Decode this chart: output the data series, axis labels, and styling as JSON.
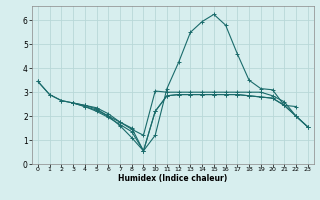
{
  "background_color": "#d7eeee",
  "grid_color": "#b8d8d8",
  "line_color": "#1a6b6b",
  "xlim": [
    -0.5,
    23.5
  ],
  "ylim": [
    0,
    6.6
  ],
  "xticks": [
    0,
    1,
    2,
    3,
    4,
    5,
    6,
    7,
    8,
    9,
    10,
    11,
    12,
    13,
    14,
    15,
    16,
    17,
    18,
    19,
    20,
    21,
    22,
    23
  ],
  "yticks": [
    0,
    1,
    2,
    3,
    4,
    5,
    6
  ],
  "xlabel": "Humidex (Indice chaleur)",
  "series": [
    {
      "x": [
        0,
        1,
        2,
        3,
        4,
        5,
        6,
        7,
        8,
        9,
        10,
        11,
        12,
        13,
        14,
        15,
        16,
        17,
        18,
        19,
        20,
        21,
        22,
        23
      ],
      "y": [
        3.45,
        2.9,
        2.65,
        2.55,
        2.45,
        2.35,
        2.1,
        1.75,
        1.45,
        1.2,
        3.05,
        3.0,
        3.0,
        3.0,
        3.0,
        3.0,
        3.0,
        3.0,
        3.0,
        3.0,
        2.85,
        2.6,
        2.0,
        1.55
      ]
    },
    {
      "x": [
        0,
        1,
        2,
        3,
        4,
        5,
        6,
        7,
        8,
        9,
        10,
        11,
        12,
        13,
        14,
        15,
        16,
        17,
        18,
        19,
        20,
        21,
        22
      ],
      "y": [
        3.45,
        2.9,
        2.65,
        2.55,
        2.45,
        2.3,
        2.0,
        1.6,
        1.1,
        0.55,
        1.2,
        3.15,
        4.25,
        5.5,
        5.95,
        6.25,
        5.8,
        4.6,
        3.5,
        3.15,
        3.1,
        2.45,
        2.4
      ]
    },
    {
      "x": [
        3,
        4,
        5,
        6,
        7,
        8,
        9,
        10,
        11,
        12,
        13,
        14,
        15,
        16,
        17,
        18,
        19,
        20,
        21,
        22,
        23
      ],
      "y": [
        2.55,
        2.4,
        2.25,
        2.0,
        1.75,
        1.5,
        0.55,
        2.2,
        2.85,
        2.9,
        2.9,
        2.9,
        2.9,
        2.9,
        2.9,
        2.85,
        2.8,
        2.75,
        2.45,
        2.0,
        1.55
      ]
    },
    {
      "x": [
        3,
        4,
        5,
        6,
        7,
        8,
        9,
        10,
        11,
        12,
        13,
        14,
        15,
        16,
        17,
        18,
        19,
        20,
        21,
        22,
        23
      ],
      "y": [
        2.55,
        2.4,
        2.2,
        1.95,
        1.65,
        1.35,
        0.55,
        2.2,
        2.85,
        2.9,
        2.9,
        2.9,
        2.9,
        2.9,
        2.9,
        2.85,
        2.8,
        2.75,
        2.45,
        2.0,
        1.55
      ]
    }
  ]
}
